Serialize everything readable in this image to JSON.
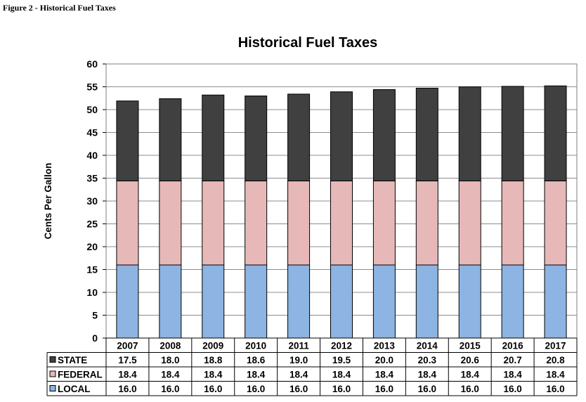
{
  "caption": "Figure 2 - Historical Fuel Taxes",
  "chart_data": {
    "type": "bar",
    "stacked": true,
    "title": "Historical Fuel Taxes",
    "xlabel": "",
    "ylabel": "Cents Per Gallon",
    "ylim": [
      0,
      60
    ],
    "yticks": [
      0,
      5,
      10,
      15,
      20,
      25,
      30,
      35,
      40,
      45,
      50,
      55,
      60
    ],
    "grid": true,
    "legend": "data-table",
    "categories": [
      "2007",
      "2008",
      "2009",
      "2010",
      "2011",
      "2012",
      "2013",
      "2014",
      "2015",
      "2016",
      "2017"
    ],
    "series": [
      {
        "name": "LOCAL",
        "color": "#8DB4E2",
        "values": [
          16.0,
          16.0,
          16.0,
          16.0,
          16.0,
          16.0,
          16.0,
          16.0,
          16.0,
          16.0,
          16.0
        ]
      },
      {
        "name": "FEDERAL",
        "color": "#E6B9B8",
        "values": [
          18.4,
          18.4,
          18.4,
          18.4,
          18.4,
          18.4,
          18.4,
          18.4,
          18.4,
          18.4,
          18.4
        ]
      },
      {
        "name": "STATE",
        "color": "#404040",
        "values": [
          17.5,
          18.0,
          18.8,
          18.6,
          19.0,
          19.5,
          20.0,
          20.3,
          20.6,
          20.7,
          20.8
        ]
      }
    ],
    "table_rows": [
      "STATE",
      "FEDERAL",
      "LOCAL"
    ]
  }
}
